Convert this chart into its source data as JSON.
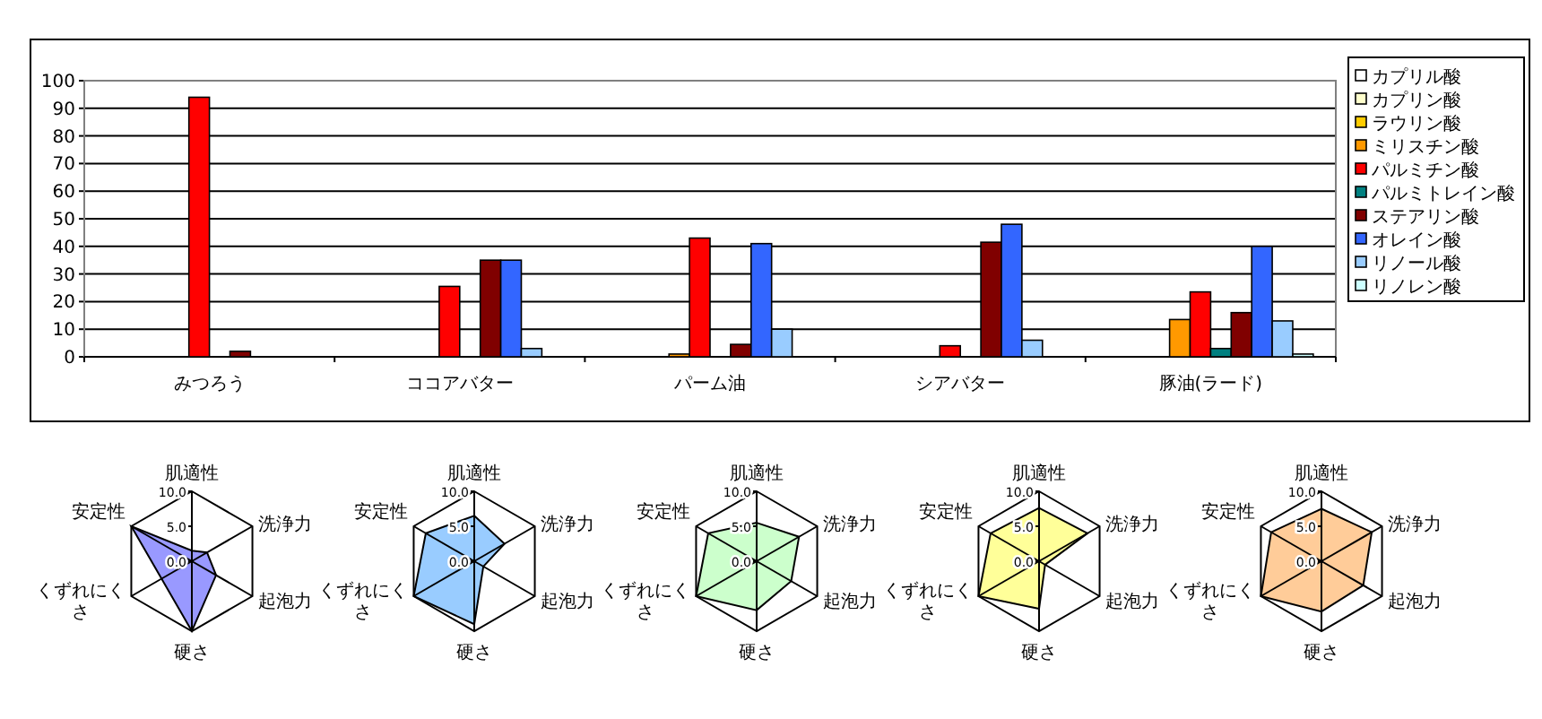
{
  "chart_data": [
    {
      "type": "bar",
      "categories": [
        "みつろう",
        "ココアバター",
        "パーム油",
        "シアバター",
        "豚油(ラード)"
      ],
      "ylim": [
        0,
        100
      ],
      "yticks": [
        0,
        10,
        20,
        30,
        40,
        50,
        60,
        70,
        80,
        90,
        100
      ],
      "grid": "y",
      "legend": "right",
      "series": [
        {
          "name": "カプリル酸",
          "color": "#ffffff",
          "values": [
            null,
            null,
            null,
            null,
            null
          ]
        },
        {
          "name": "カプリン酸",
          "color": "#ffffcc",
          "values": [
            null,
            null,
            null,
            null,
            null
          ]
        },
        {
          "name": "ラウリン酸",
          "color": "#ffcc00",
          "values": [
            null,
            null,
            null,
            null,
            null
          ]
        },
        {
          "name": "ミリスチン酸",
          "color": "#ff9900",
          "values": [
            null,
            null,
            1,
            null,
            13.5
          ]
        },
        {
          "name": "パルミチン酸",
          "color": "#ff0000",
          "values": [
            94,
            25.5,
            43,
            4,
            23.5
          ]
        },
        {
          "name": "パルミトレイン酸",
          "color": "#008080",
          "values": [
            null,
            null,
            null,
            null,
            3
          ]
        },
        {
          "name": "ステアリン酸",
          "color": "#800000",
          "values": [
            2,
            35,
            4.5,
            41.5,
            16
          ]
        },
        {
          "name": "オレイン酸",
          "color": "#3366ff",
          "values": [
            null,
            35,
            41,
            48,
            40
          ]
        },
        {
          "name": "リノール酸",
          "color": "#99ccff",
          "values": [
            null,
            3,
            10,
            6,
            13
          ]
        },
        {
          "name": "リノレン酸",
          "color": "#ccffff",
          "values": [
            null,
            null,
            null,
            null,
            1
          ]
        }
      ]
    },
    {
      "type": "radar",
      "categories": [
        "肌適性",
        "洗浄力",
        "起泡力",
        "硬さ",
        "くずれにくさ",
        "安定性"
      ],
      "ylim": [
        0,
        10
      ],
      "yticks": [
        {
          "value": 0,
          "label": "0.0"
        },
        {
          "value": 5,
          "label": "5.0"
        },
        {
          "value": 10,
          "label": "10.0"
        }
      ],
      "series": [
        {
          "color": "#9999ff",
          "values": [
            1.5,
            2.5,
            4,
            10,
            null,
            10
          ]
        }
      ]
    },
    {
      "type": "radar",
      "categories": [
        "肌適性",
        "洗浄力",
        "起泡力",
        "硬さ",
        "くずれにくさ",
        "安定性"
      ],
      "ylim": [
        0,
        10
      ],
      "yticks": [
        {
          "value": 0,
          "label": "0.0"
        },
        {
          "value": 5,
          "label": "5.0"
        },
        {
          "value": 10,
          "label": "10.0"
        }
      ],
      "series": [
        {
          "color": "#99ccff",
          "values": [
            6.5,
            5,
            1.5,
            9,
            10,
            8
          ]
        }
      ]
    },
    {
      "type": "radar",
      "categories": [
        "肌適性",
        "洗浄力",
        "起泡力",
        "硬さ",
        "くずれにくさ",
        "安定性"
      ],
      "ylim": [
        0,
        10
      ],
      "yticks": [
        {
          "value": 0,
          "label": "0.0"
        },
        {
          "value": 5,
          "label": "5.0"
        },
        {
          "value": 10,
          "label": "10.0"
        }
      ],
      "series": [
        {
          "color": "#ccffcc",
          "values": [
            5.5,
            7,
            5.7,
            7,
            10,
            8
          ]
        }
      ]
    },
    {
      "type": "radar",
      "categories": [
        "肌適性",
        "洗浄力",
        "起泡力",
        "硬さ",
        "くずれにくさ",
        "安定性"
      ],
      "ylim": [
        0,
        10
      ],
      "yticks": [
        {
          "value": 0,
          "label": "0.0"
        },
        {
          "value": 5,
          "label": "5.0"
        },
        {
          "value": 10,
          "label": "10.0"
        }
      ],
      "series": [
        {
          "color": "#ffff99",
          "values": [
            7.6,
            8,
            1,
            6.8,
            10,
            8
          ]
        }
      ]
    },
    {
      "type": "radar",
      "categories": [
        "肌適性",
        "洗浄力",
        "起泡力",
        "硬さ",
        "くずれにくさ",
        "安定性"
      ],
      "ylim": [
        0,
        10
      ],
      "yticks": [
        {
          "value": 0,
          "label": "0.0"
        },
        {
          "value": 5,
          "label": "5.0"
        },
        {
          "value": 10,
          "label": "10.0"
        }
      ],
      "series": [
        {
          "color": "#ffcc99",
          "values": [
            7.5,
            8.3,
            6.9,
            7.2,
            10,
            8.3
          ]
        }
      ]
    }
  ]
}
